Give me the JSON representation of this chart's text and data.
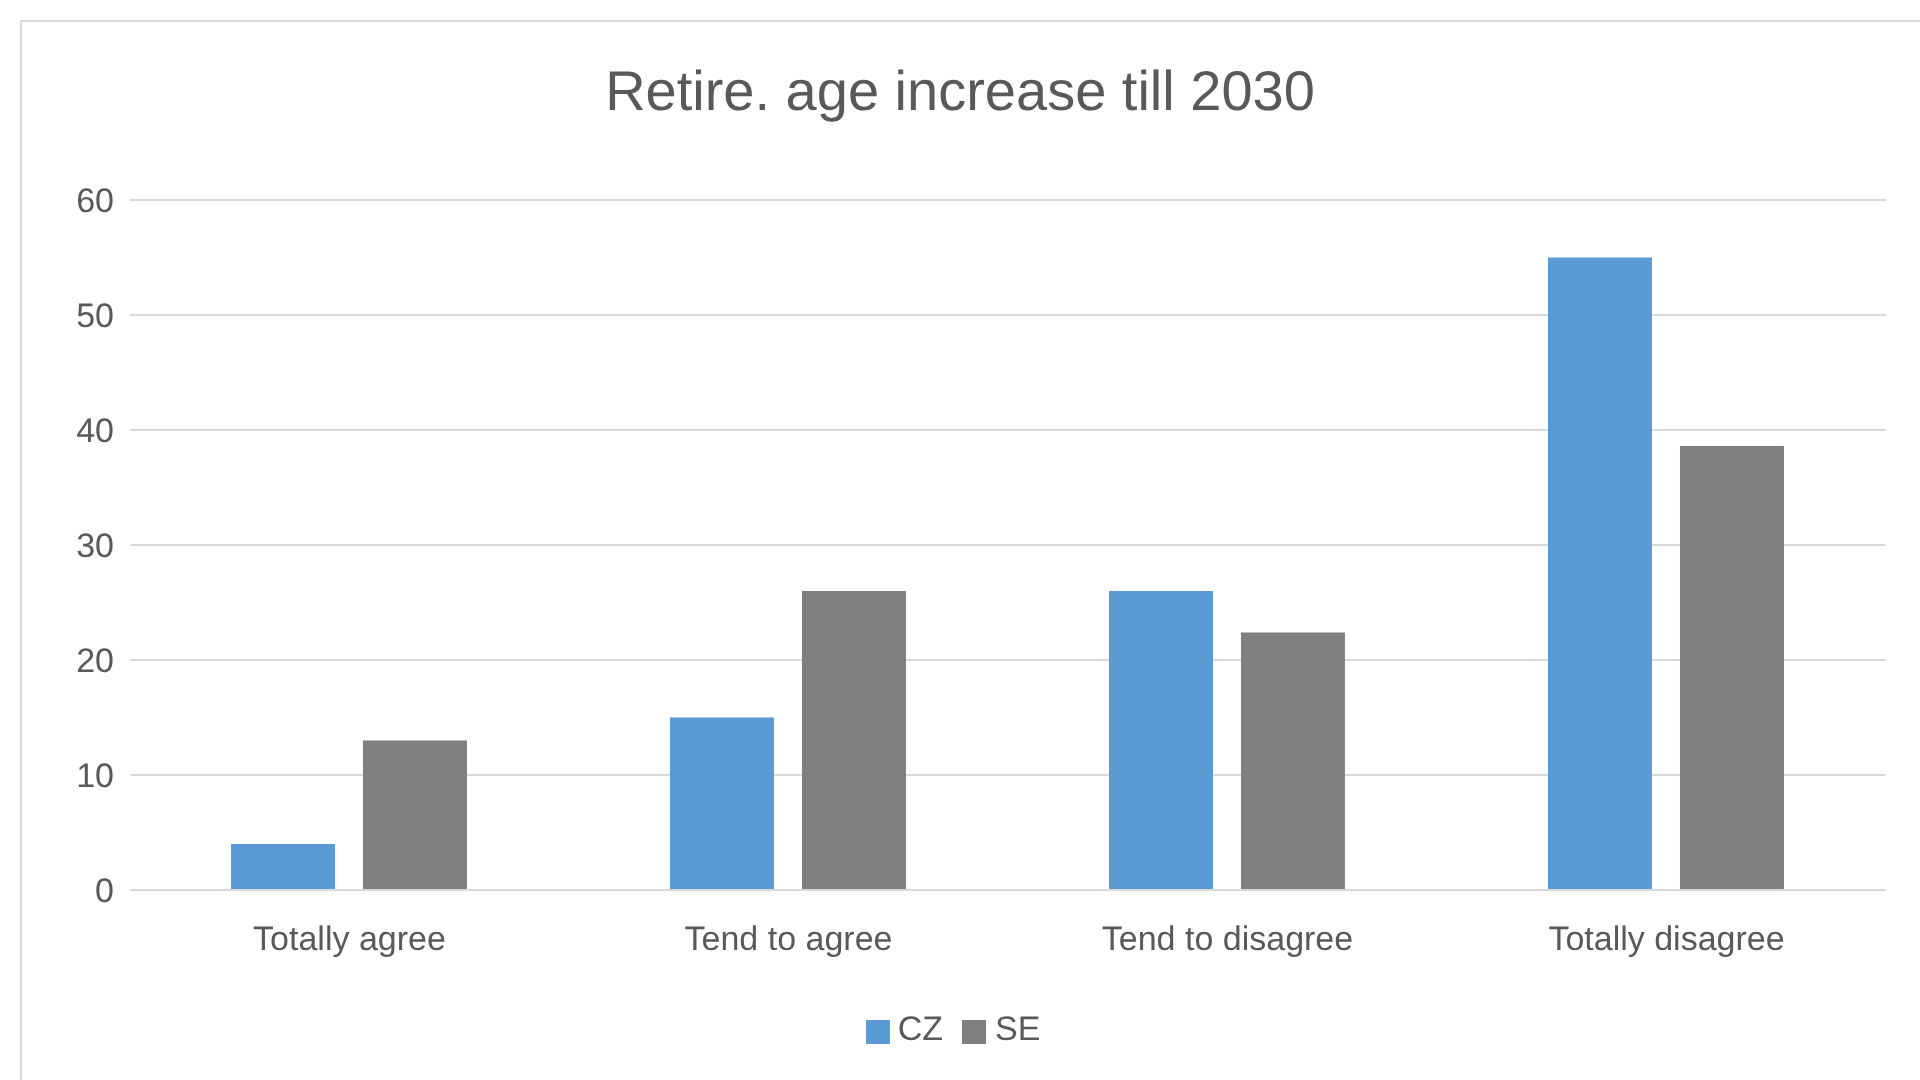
{
  "chart_data": {
    "type": "bar",
    "title": "Retire. age increase till 2030",
    "categories": [
      "Totally agree",
      "Tend to agree",
      "Tend to disagree",
      "Totally disagree"
    ],
    "series": [
      {
        "name": "CZ",
        "color": "#5b9bd5",
        "values": [
          4,
          15,
          26,
          55
        ]
      },
      {
        "name": "SE",
        "color": "#7f7f7f",
        "values": [
          13,
          26,
          22.4,
          38.6
        ]
      }
    ],
    "ylim": [
      0,
      60
    ],
    "yticks": [
      0,
      10,
      20,
      30,
      40,
      50,
      60
    ],
    "grid": "y",
    "legend": "bottom"
  }
}
